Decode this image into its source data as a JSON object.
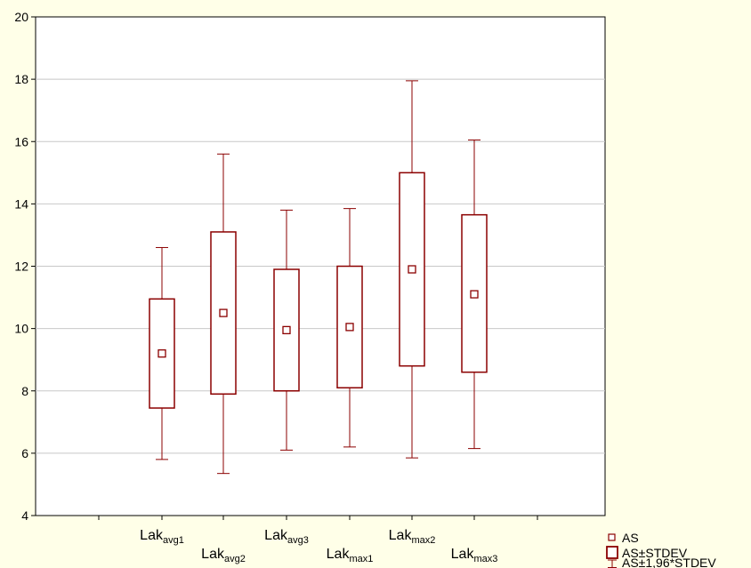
{
  "chart_data": {
    "type": "box",
    "title": "",
    "xlabel": "",
    "ylabel": "",
    "ylim": [
      4,
      20
    ],
    "yticks": [
      4,
      6,
      8,
      10,
      12,
      14,
      16,
      18,
      20
    ],
    "grid": true,
    "legend_position": "bottom-right",
    "categories": [
      {
        "base": "Lak",
        "sub": "avg1"
      },
      {
        "base": "Lak",
        "sub": "avg2"
      },
      {
        "base": "Lak",
        "sub": "avg3"
      },
      {
        "base": "Lak",
        "sub": "max1"
      },
      {
        "base": "Lak",
        "sub": "max2"
      },
      {
        "base": "Lak",
        "sub": "max3"
      }
    ],
    "series": [
      {
        "name": "AS",
        "values": [
          9.2,
          10.5,
          9.95,
          10.05,
          11.9,
          11.1
        ]
      },
      {
        "name": "AS±STDEV",
        "lower": [
          7.45,
          7.9,
          8.0,
          8.1,
          8.8,
          8.6
        ],
        "upper": [
          10.95,
          13.1,
          11.9,
          12.0,
          15.0,
          13.65
        ]
      },
      {
        "name": "AS±1,96*STDEV",
        "lower": [
          5.8,
          5.35,
          6.1,
          6.2,
          5.85,
          6.15
        ],
        "upper": [
          12.6,
          15.6,
          13.8,
          13.85,
          17.95,
          16.05
        ]
      }
    ],
    "color": "#8b0000",
    "legend": [
      "AS",
      "AS±STDEV",
      "AS±1,96*STDEV"
    ]
  }
}
